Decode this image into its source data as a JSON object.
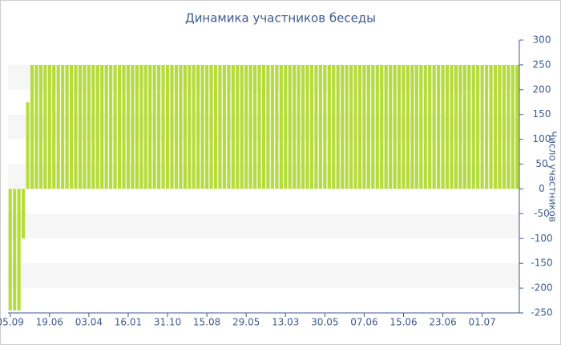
{
  "chart_data": {
    "type": "bar",
    "title": "Динамика участников беседы",
    "y_label": "Число участников",
    "categories": [
      "05.09",
      null,
      null,
      null,
      null,
      null,
      null,
      null,
      null,
      "19.06",
      null,
      null,
      null,
      null,
      null,
      null,
      null,
      null,
      "03.04",
      null,
      null,
      null,
      null,
      null,
      null,
      null,
      null,
      "16.01",
      null,
      null,
      null,
      null,
      null,
      null,
      null,
      null,
      "31.10",
      null,
      null,
      null,
      null,
      null,
      null,
      null,
      null,
      "15.08",
      null,
      null,
      null,
      null,
      null,
      null,
      null,
      null,
      "29.05",
      null,
      null,
      null,
      null,
      null,
      null,
      null,
      null,
      "13.03",
      null,
      null,
      null,
      null,
      null,
      null,
      null,
      null,
      "30.05",
      null,
      null,
      null,
      null,
      null,
      null,
      null,
      null,
      "07.06",
      null,
      null,
      null,
      null,
      null,
      null,
      null,
      null,
      "15.06",
      null,
      null,
      null,
      null,
      null,
      null,
      null,
      null,
      "23.06",
      null,
      null,
      null,
      null,
      null,
      null,
      null,
      null,
      "01.07",
      null,
      null,
      null,
      null,
      null,
      null,
      null,
      null
    ],
    "values": [
      -245,
      -245,
      -245,
      -100,
      175,
      250,
      250,
      250,
      250,
      250,
      250,
      250,
      250,
      250,
      250,
      250,
      250,
      250,
      250,
      250,
      250,
      250,
      250,
      250,
      250,
      250,
      250,
      250,
      250,
      250,
      250,
      250,
      250,
      250,
      250,
      250,
      250,
      250,
      250,
      250,
      250,
      250,
      250,
      250,
      250,
      250,
      250,
      250,
      250,
      250,
      250,
      250,
      250,
      250,
      250,
      250,
      250,
      250,
      250,
      250,
      250,
      250,
      250,
      250,
      250,
      250,
      250,
      250,
      250,
      250,
      250,
      250,
      250,
      250,
      250,
      250,
      250,
      250,
      250,
      250,
      250,
      250,
      250,
      250,
      250,
      250,
      250,
      250,
      250,
      250,
      250,
      250,
      250,
      250,
      250,
      250,
      250,
      250,
      250,
      250,
      250,
      250,
      250,
      250,
      250,
      250,
      250,
      250,
      250,
      250,
      250,
      250,
      250,
      250,
      250,
      250,
      250
    ],
    "color": "#b5dc3a",
    "ylim": [
      -250,
      300
    ],
    "yticks": [
      -250,
      -200,
      -150,
      -100,
      -50,
      0,
      50,
      100,
      150,
      200,
      250,
      300
    ],
    "y_axis_side": "right",
    "grid_bands": true
  }
}
